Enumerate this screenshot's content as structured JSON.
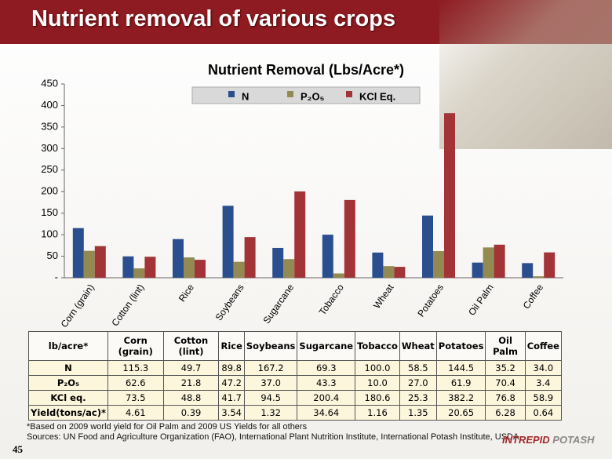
{
  "slide": {
    "title": "Nutrient removal of various crops",
    "page_number": "45",
    "notes": [
      "*Based on 2009 world yield for Oil Palm and 2009 US Yields for all others",
      "Sources: UN Food and Agriculture Organization (FAO), International Plant Nutrition Institute, International Potash Institute, USDA"
    ],
    "logo": [
      "INTREPID",
      "POTASH"
    ],
    "table": {
      "header": [
        "lb/acre*",
        "Corn (grain)",
        "Cotton (lint)",
        "Rice",
        "Soybeans",
        "Sugarcane",
        "Tobacco",
        "Wheat",
        "Potatoes",
        "Oil Palm",
        "Coffee"
      ],
      "rows": [
        [
          "N",
          "115.3",
          "49.7",
          "89.8",
          "167.2",
          "69.3",
          "100.0",
          "58.5",
          "144.5",
          "35.2",
          "34.0"
        ],
        [
          "P₂O₅",
          "62.6",
          "21.8",
          "47.2",
          "37.0",
          "43.3",
          "10.0",
          "27.0",
          "61.9",
          "70.4",
          "3.4"
        ],
        [
          "KCl eq.",
          "73.5",
          "48.8",
          "41.7",
          "94.5",
          "200.4",
          "180.6",
          "25.3",
          "382.2",
          "76.8",
          "58.9"
        ],
        [
          "Yield(tons/ac)*",
          "4.61",
          "0.39",
          "3.54",
          "1.32",
          "34.64",
          "1.16",
          "1.35",
          "20.65",
          "6.28",
          "0.64"
        ]
      ]
    }
  },
  "chart_data": {
    "type": "bar",
    "title": "Nutrient Removal (Lbs/Acre*)",
    "categories": [
      "Corn (grain)",
      "Cotton (lint)",
      "Rice",
      "Soybeans",
      "Sugarcane",
      "Tobacco",
      "Wheat",
      "Potatoes",
      "Oil Palm",
      "Coffee"
    ],
    "series": [
      {
        "name": "N",
        "color": "#2b4f8e",
        "values": [
          115.3,
          49.7,
          89.8,
          167.2,
          69.3,
          100.0,
          58.5,
          144.5,
          35.2,
          34.0
        ]
      },
      {
        "name": "P₂O₅",
        "color": "#938953",
        "values": [
          62.6,
          21.8,
          47.2,
          37.0,
          43.3,
          10.0,
          27.0,
          61.9,
          70.4,
          3.4
        ]
      },
      {
        "name": "KCl Eq.",
        "color": "#a23437",
        "values": [
          73.5,
          48.8,
          41.7,
          94.5,
          200.4,
          180.6,
          25.3,
          382.2,
          76.8,
          58.9
        ]
      }
    ],
    "ylim": [
      0,
      450
    ],
    "yticks": [
      {
        "value": 0,
        "label": "-"
      },
      50,
      100,
      150,
      200,
      250,
      300,
      350,
      400,
      450
    ]
  }
}
